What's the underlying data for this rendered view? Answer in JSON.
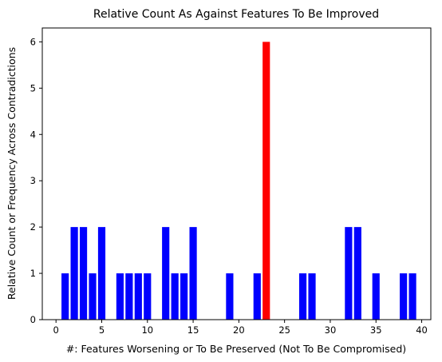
{
  "chart_data": {
    "type": "bar",
    "title": "Relative Count As Against Features To Be Improved",
    "xlabel": "#: Features Worsening or To Be Preserved (Not To Be Compromised)",
    "ylabel": "Relative Count or Frequency Across Contradictions",
    "xlim": [
      -1.5,
      41.0
    ],
    "ylim": [
      0,
      6.3
    ],
    "xticks": [
      0,
      5,
      10,
      15,
      20,
      25,
      30,
      35,
      40
    ],
    "yticks": [
      0,
      1,
      2,
      3,
      4,
      5,
      6
    ],
    "grid": false,
    "bar_color": "#0000ff",
    "highlight_color": "#ff0000",
    "bars": [
      {
        "x": 1,
        "value": 1
      },
      {
        "x": 2,
        "value": 2
      },
      {
        "x": 3,
        "value": 2
      },
      {
        "x": 4,
        "value": 1
      },
      {
        "x": 5,
        "value": 2
      },
      {
        "x": 7,
        "value": 1
      },
      {
        "x": 8,
        "value": 1
      },
      {
        "x": 9,
        "value": 1
      },
      {
        "x": 10,
        "value": 1
      },
      {
        "x": 12,
        "value": 2
      },
      {
        "x": 13,
        "value": 1
      },
      {
        "x": 14,
        "value": 1
      },
      {
        "x": 15,
        "value": 2
      },
      {
        "x": 19,
        "value": 1
      },
      {
        "x": 22,
        "value": 1
      },
      {
        "x": 23,
        "value": 6,
        "highlight": true
      },
      {
        "x": 27,
        "value": 1
      },
      {
        "x": 28,
        "value": 1
      },
      {
        "x": 32,
        "value": 2
      },
      {
        "x": 33,
        "value": 2
      },
      {
        "x": 35,
        "value": 1
      },
      {
        "x": 38,
        "value": 1
      },
      {
        "x": 39,
        "value": 1
      }
    ]
  }
}
